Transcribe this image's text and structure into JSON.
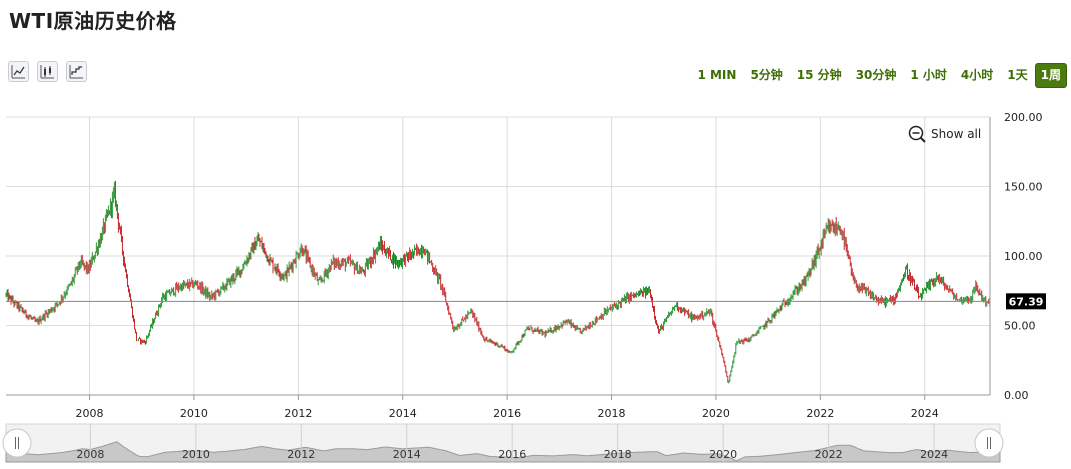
{
  "page": {
    "title": "WTI原油历史价格"
  },
  "toolbar": {
    "tools": [
      "line-chart-icon",
      "candlestick-icon",
      "step-chart-icon"
    ],
    "ranges": [
      "1 MIN",
      "5分钟",
      "15 分钟",
      "30分钟",
      "1 小时",
      "4小时",
      "1天",
      "1周"
    ],
    "active_range": "1周"
  },
  "controls": {
    "show_all_label": "Show all"
  },
  "colors": {
    "up": "#2e9a3a",
    "down": "#c8282e",
    "grid": "#dcdcdc",
    "navigator_fill": "#c8c8c8",
    "active_button": "#4b7b10"
  },
  "chart_data": {
    "type": "candlestick",
    "x": [
      "2006-06",
      "2006-10",
      "2007-01",
      "2007-06",
      "2007-09",
      "2007-11",
      "2008-01",
      "2008-04",
      "2008-07",
      "2008-09",
      "2008-12",
      "2009-02",
      "2009-06",
      "2009-10",
      "2010-02",
      "2010-05",
      "2010-08",
      "2010-12",
      "2011-04",
      "2011-07",
      "2011-10",
      "2012-02",
      "2012-06",
      "2012-09",
      "2013-01",
      "2013-04",
      "2013-08",
      "2013-12",
      "2014-06",
      "2014-10",
      "2015-01",
      "2015-05",
      "2015-08",
      "2015-12",
      "2016-02",
      "2016-06",
      "2016-10",
      "2017-03",
      "2017-06",
      "2017-12",
      "2018-05",
      "2018-10",
      "2018-12",
      "2019-04",
      "2019-08",
      "2019-12",
      "2020-03",
      "2020-04",
      "2020-06",
      "2020-09",
      "2021-01",
      "2021-07",
      "2021-10",
      "2022-03",
      "2022-06",
      "2022-09",
      "2023-03",
      "2023-06",
      "2023-09",
      "2023-12",
      "2024-04",
      "2024-09",
      "2024-12",
      "2025-01",
      "2025-03"
    ],
    "y": [
      72,
      60,
      52,
      66,
      80,
      95,
      90,
      115,
      145,
      100,
      40,
      38,
      70,
      78,
      80,
      70,
      77,
      90,
      112,
      95,
      85,
      106,
      80,
      95,
      95,
      88,
      108,
      95,
      106,
      80,
      47,
      60,
      40,
      35,
      30,
      48,
      44,
      53,
      45,
      60,
      70,
      75,
      45,
      65,
      55,
      60,
      25,
      8,
      38,
      40,
      52,
      73,
      83,
      120,
      120,
      80,
      67,
      68,
      90,
      70,
      85,
      68,
      70,
      78,
      67.39
    ],
    "last_price": 67.39,
    "last_price_label": "67.39",
    "ylim": [
      0,
      200
    ],
    "y_ticks": [
      "0.00",
      "50.00",
      "100.00",
      "150.00",
      "200.00"
    ],
    "x_ticks": [
      "2008",
      "2010",
      "2012",
      "2014",
      "2016",
      "2018",
      "2020",
      "2022",
      "2024"
    ],
    "navigator_ticks": [
      "2008",
      "2010",
      "2012",
      "2014",
      "2016",
      "2018",
      "2020",
      "2022",
      "2024"
    ],
    "grid": true,
    "legend": "none"
  }
}
